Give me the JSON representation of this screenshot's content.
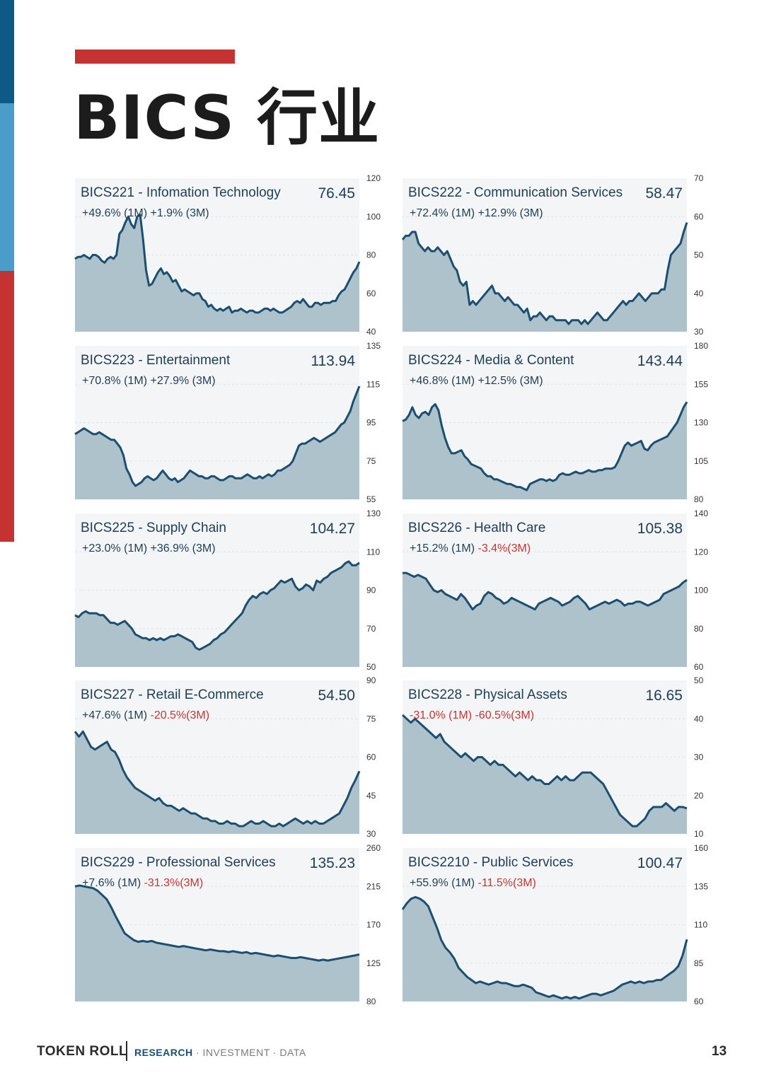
{
  "page": {
    "title": "BICS 行业",
    "page_number": "13",
    "colors": {
      "accent_red": "#c43331",
      "sidebar": [
        "#0e5a86",
        "#4a9cc9",
        "#c43331"
      ],
      "line": "#1b4f72",
      "area": "#aec2cb",
      "panel_bg": "#f3f5f7",
      "positive_text": "#1f3d56",
      "negative_text": "#c43331"
    }
  },
  "footer": {
    "brand": "TOKEN ROLL",
    "tag_highlight": "RESEARCH",
    "tag_rest": " · INVESTMENT · DATA"
  },
  "chart_data": [
    {
      "type": "area",
      "name": "BICS221 - Infomation Technology",
      "value": "76.45",
      "change_1m": "+49.6% (1M)",
      "change_3m": "+1.9% (3M)",
      "change_3m_negative": false,
      "yticks": [
        "120",
        "100",
        "80",
        "60",
        "40"
      ],
      "ylim": [
        40,
        120
      ],
      "values": [
        78,
        79,
        79,
        80,
        79,
        78,
        80,
        80,
        79,
        77,
        76,
        78,
        79,
        78,
        80,
        91,
        93,
        97,
        100,
        96,
        94,
        100,
        101,
        88,
        72,
        64,
        65,
        68,
        71,
        73,
        70,
        71,
        69,
        66,
        67,
        64,
        61,
        62,
        61,
        60,
        59,
        60,
        60,
        57,
        56,
        53,
        54,
        52,
        51,
        52,
        51,
        52,
        53,
        50,
        51,
        51,
        52,
        51,
        50,
        51,
        51,
        50,
        50,
        51,
        52,
        52,
        51,
        52,
        51,
        50,
        50,
        51,
        52,
        53,
        55,
        56,
        55,
        57,
        55,
        53,
        53,
        55,
        55,
        54,
        55,
        55,
        55,
        56,
        56,
        59,
        61,
        62,
        65,
        68,
        71,
        73,
        76.45
      ]
    },
    {
      "type": "area",
      "name": "BICS222 - Communication Services",
      "value": "58.47",
      "change_1m": "+72.4% (1M)",
      "change_3m": "+12.9% (3M)",
      "change_3m_negative": false,
      "yticks": [
        "70",
        "60",
        "50",
        "40",
        "30"
      ],
      "ylim": [
        30,
        70
      ],
      "values": [
        54,
        55,
        55,
        56,
        56,
        53,
        52,
        51,
        52,
        51,
        51,
        52,
        51,
        50,
        51,
        49,
        47,
        46,
        43,
        42,
        43,
        37,
        38,
        37,
        38,
        39,
        40,
        41,
        42,
        40,
        40,
        39,
        38,
        39,
        38,
        37,
        37,
        36,
        35,
        36,
        33,
        34,
        34,
        35,
        34,
        33,
        34,
        34,
        33,
        33,
        33,
        33,
        32,
        33,
        33,
        33,
        32,
        33,
        32,
        33,
        34,
        35,
        34,
        33,
        33,
        34,
        35,
        36,
        37,
        38,
        37,
        38,
        38,
        39,
        40,
        39,
        38,
        39,
        40,
        40,
        40,
        41,
        41,
        46,
        50,
        51,
        52,
        53,
        56,
        58.47
      ]
    },
    {
      "type": "area",
      "name": "BICS223 - Entertainment",
      "value": "113.94",
      "change_1m": "+70.8% (1M)",
      "change_3m": "+27.9% (3M)",
      "change_3m_negative": false,
      "yticks": [
        "135",
        "115",
        "95",
        "75",
        "55"
      ],
      "ylim": [
        55,
        135
      ],
      "values": [
        89,
        90,
        91,
        92,
        91,
        90,
        89,
        89,
        90,
        89,
        88,
        87,
        86,
        86,
        84,
        82,
        78,
        71,
        68,
        64,
        62,
        63,
        64,
        66,
        67,
        66,
        65,
        66,
        68,
        70,
        68,
        66,
        65,
        66,
        64,
        65,
        66,
        68,
        70,
        69,
        68,
        67,
        67,
        66,
        66,
        67,
        67,
        66,
        65,
        65,
        66,
        67,
        67,
        66,
        66,
        66,
        67,
        68,
        67,
        66,
        66,
        67,
        66,
        67,
        68,
        67,
        68,
        70,
        70,
        71,
        72,
        73,
        75,
        79,
        83,
        84,
        84,
        85,
        86,
        87,
        86,
        85,
        86,
        87,
        88,
        89,
        90,
        92,
        94,
        95,
        98,
        101,
        106,
        110,
        113.94
      ]
    },
    {
      "type": "area",
      "name": "BICS224 - Media & Content",
      "value": "143.44",
      "change_1m": "+46.8% (1M)",
      "change_3m": "+12.5% (3M)",
      "change_3m_negative": false,
      "yticks": [
        "180",
        "155",
        "130",
        "105",
        "80"
      ],
      "ylim": [
        80,
        180
      ],
      "values": [
        131,
        132,
        135,
        140,
        135,
        133,
        136,
        137,
        135,
        140,
        142,
        138,
        128,
        120,
        114,
        110,
        110,
        111,
        112,
        108,
        106,
        103,
        102,
        101,
        100,
        97,
        95,
        95,
        93,
        93,
        92,
        91,
        90,
        90,
        89,
        88,
        88,
        87,
        86,
        90,
        91,
        92,
        93,
        93,
        92,
        93,
        92,
        93,
        96,
        97,
        96,
        96,
        97,
        98,
        97,
        97,
        98,
        99,
        98,
        98,
        99,
        99,
        100,
        100,
        100,
        101,
        105,
        110,
        115,
        117,
        115,
        116,
        117,
        118,
        113,
        112,
        115,
        117,
        118,
        119,
        120,
        121,
        124,
        127,
        130,
        135,
        140,
        143.44
      ]
    },
    {
      "type": "area",
      "name": "BICS225 - Supply Chain",
      "value": "104.27",
      "change_1m": "+23.0% (1M)",
      "change_3m": "+36.9% (3M)",
      "change_3m_negative": false,
      "yticks": [
        "130",
        "110",
        "90",
        "70",
        "50"
      ],
      "ylim": [
        50,
        130
      ],
      "values": [
        77,
        76,
        78,
        79,
        78,
        78,
        78,
        77,
        77,
        75,
        73,
        73,
        72,
        73,
        74,
        72,
        70,
        67,
        66,
        65,
        65,
        64,
        65,
        64,
        65,
        64,
        65,
        66,
        66,
        67,
        66,
        65,
        64,
        63,
        60,
        59,
        60,
        61,
        62,
        64,
        65,
        67,
        68,
        70,
        72,
        74,
        76,
        78,
        82,
        85,
        87,
        86,
        88,
        89,
        88,
        90,
        91,
        93,
        95,
        94,
        95,
        96,
        92,
        90,
        91,
        93,
        92,
        90,
        95,
        94,
        96,
        97,
        99,
        100,
        101,
        102,
        104,
        105,
        103,
        103,
        104.27
      ]
    },
    {
      "type": "area",
      "name": "BICS226 - Health Care",
      "value": "105.38",
      "change_1m": "+15.2% (1M)",
      "change_3m": "-3.4%(3M)",
      "change_3m_negative": true,
      "yticks": [
        "140",
        "120",
        "100",
        "80",
        "60"
      ],
      "ylim": [
        60,
        140
      ],
      "values": [
        109,
        109,
        108,
        107,
        108,
        107,
        106,
        103,
        100,
        99,
        100,
        98,
        97,
        96,
        95,
        98,
        96,
        93,
        90,
        92,
        93,
        97,
        99,
        98,
        96,
        95,
        93,
        94,
        96,
        95,
        94,
        93,
        92,
        91,
        90,
        93,
        94,
        95,
        96,
        95,
        94,
        92,
        93,
        94,
        96,
        97,
        95,
        93,
        90,
        91,
        92,
        93,
        94,
        93,
        94,
        95,
        94,
        92,
        93,
        93,
        94,
        94,
        93,
        92,
        93,
        94,
        95,
        98,
        99,
        100,
        101,
        102,
        104,
        105.38
      ]
    },
    {
      "type": "area",
      "name": "BICS227 - Retail E-Commerce",
      "value": "54.50",
      "change_1m": "+47.6% (1M)",
      "change_3m": "-20.5%(3M)",
      "change_3m_negative": true,
      "yticks": [
        "90",
        "75",
        "60",
        "45",
        "30"
      ],
      "ylim": [
        30,
        90
      ],
      "values": [
        70,
        68,
        70,
        67,
        64,
        63,
        64,
        65,
        66,
        63,
        62,
        59,
        55,
        52,
        50,
        48,
        47,
        46,
        45,
        44,
        43,
        44,
        42,
        41,
        41,
        40,
        39,
        40,
        39,
        38,
        38,
        37,
        36,
        36,
        35,
        35,
        34,
        34,
        35,
        34,
        34,
        33,
        33,
        34,
        35,
        34,
        34,
        35,
        34,
        33,
        33,
        34,
        33,
        34,
        35,
        36,
        35,
        34,
        35,
        34,
        35,
        34,
        34,
        35,
        36,
        37,
        38,
        41,
        44,
        48,
        51,
        54.5
      ]
    },
    {
      "type": "area",
      "name": "BICS228 - Physical Assets",
      "value": "16.65",
      "change_1m": "-31.0% (1M)",
      "change_3m": "-60.5%(3M)",
      "change_3m_negative": true,
      "yticks": [
        "50",
        "40",
        "30",
        "20",
        "10"
      ],
      "ylim": [
        10,
        50
      ],
      "values": [
        41,
        40,
        39,
        40,
        39,
        38,
        37,
        36,
        35,
        36,
        34,
        33,
        32,
        31,
        30,
        31,
        30,
        29,
        30,
        30,
        29,
        28,
        29,
        28,
        28,
        27,
        26,
        25,
        26,
        25,
        24,
        25,
        24,
        24,
        23,
        23,
        24,
        25,
        24,
        25,
        24,
        24,
        25,
        26,
        26,
        26,
        25,
        24,
        23,
        21,
        19,
        17,
        15,
        14,
        13,
        12,
        12,
        13,
        14,
        16,
        17,
        17,
        17,
        18,
        17,
        16,
        17,
        17,
        16.65
      ]
    },
    {
      "type": "area",
      "name": "BICS229 - Professional Services",
      "value": "135.23",
      "change_1m": "+7.6% (1M)",
      "change_3m": "-31.3%(3M)",
      "change_3m_negative": true,
      "yticks": [
        "260",
        "215",
        "170",
        "125",
        "80"
      ],
      "ylim": [
        80,
        260
      ],
      "values": [
        215,
        216,
        215,
        214,
        213,
        210,
        205,
        200,
        191,
        180,
        170,
        160,
        156,
        152,
        150,
        151,
        150,
        151,
        149,
        148,
        147,
        146,
        145,
        144,
        145,
        144,
        143,
        142,
        141,
        140,
        141,
        140,
        139,
        139,
        138,
        139,
        138,
        137,
        138,
        136,
        137,
        136,
        135,
        134,
        133,
        134,
        133,
        132,
        131,
        131,
        132,
        131,
        130,
        129,
        128,
        129,
        128,
        129,
        130,
        131,
        132,
        133,
        134,
        135.23
      ]
    },
    {
      "type": "area",
      "name": "BICS2210 - Public Services",
      "value": "100.47",
      "change_1m": "+55.9% (1M)",
      "change_3m": "-11.5%(3M)",
      "change_3m_negative": true,
      "yticks": [
        "160",
        "135",
        "110",
        "85",
        "60"
      ],
      "ylim": [
        60,
        160
      ],
      "values": [
        120,
        124,
        127,
        128,
        127,
        125,
        122,
        115,
        108,
        100,
        95,
        92,
        88,
        82,
        79,
        76,
        74,
        72,
        73,
        72,
        71,
        72,
        73,
        72,
        72,
        71,
        70,
        70,
        71,
        70,
        69,
        66,
        65,
        64,
        63,
        64,
        63,
        62,
        63,
        62,
        63,
        62,
        63,
        64,
        65,
        65,
        64,
        65,
        66,
        67,
        69,
        71,
        72,
        73,
        72,
        73,
        72,
        73,
        73,
        74,
        74,
        76,
        78,
        80,
        83,
        90,
        100.47
      ]
    }
  ]
}
